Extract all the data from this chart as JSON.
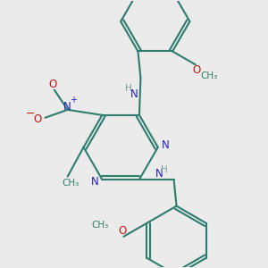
{
  "bg_color": "#ebebeb",
  "bond_color": "#2d7d6e",
  "bond_width": 1.5,
  "N_color": "#2222bb",
  "O_color": "#cc1111",
  "H_color": "#7a9a9a",
  "figsize": [
    3.0,
    3.0
  ],
  "dpi": 100,
  "xlim": [
    -1.5,
    8.5
  ],
  "ylim": [
    -4.5,
    5.5
  ]
}
